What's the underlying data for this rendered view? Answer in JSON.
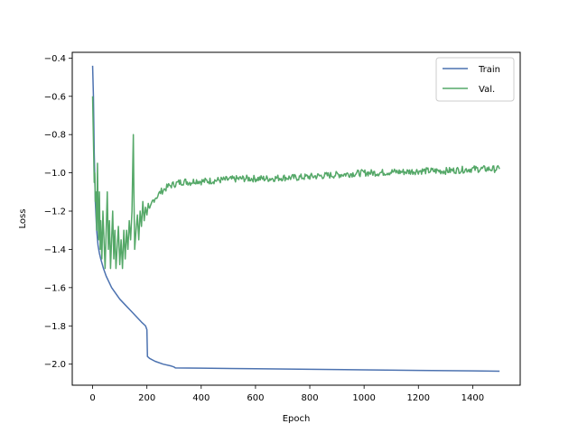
{
  "chart_data": {
    "type": "line",
    "title": "",
    "xlabel": "Epoch",
    "ylabel": "Loss",
    "xlim": [
      -75,
      1575
    ],
    "ylim": [
      -2.11,
      -0.37
    ],
    "xticks": [
      0,
      200,
      400,
      600,
      800,
      1000,
      1200,
      1400
    ],
    "yticks": [
      -2.0,
      -1.8,
      -1.6,
      -1.4,
      -1.2,
      -1.0,
      -0.8,
      -0.6,
      -0.4
    ],
    "legend": "top-right",
    "grid": false,
    "series": [
      {
        "name": "Train",
        "color": "#4c72b0",
        "points": [
          [
            0,
            -0.44
          ],
          [
            3,
            -0.6
          ],
          [
            6,
            -0.9
          ],
          [
            10,
            -1.15
          ],
          [
            15,
            -1.3
          ],
          [
            20,
            -1.38
          ],
          [
            25,
            -1.42
          ],
          [
            30,
            -1.45
          ],
          [
            40,
            -1.5
          ],
          [
            50,
            -1.54
          ],
          [
            60,
            -1.57
          ],
          [
            70,
            -1.6
          ],
          [
            80,
            -1.62
          ],
          [
            100,
            -1.66
          ],
          [
            120,
            -1.69
          ],
          [
            140,
            -1.72
          ],
          [
            160,
            -1.75
          ],
          [
            180,
            -1.78
          ],
          [
            195,
            -1.8
          ],
          [
            200,
            -1.82
          ],
          [
            202,
            -1.96
          ],
          [
            210,
            -1.97
          ],
          [
            230,
            -1.985
          ],
          [
            260,
            -2.0
          ],
          [
            290,
            -2.01
          ],
          [
            300,
            -2.015
          ],
          [
            305,
            -2.02
          ],
          [
            400,
            -2.021
          ],
          [
            600,
            -2.024
          ],
          [
            800,
            -2.027
          ],
          [
            1000,
            -2.03
          ],
          [
            1200,
            -2.033
          ],
          [
            1400,
            -2.035
          ],
          [
            1499,
            -2.037
          ]
        ]
      },
      {
        "name": "Val.",
        "color": "#55a868",
        "points": [
          [
            0,
            -0.6
          ],
          [
            2,
            -0.75
          ],
          [
            4,
            -0.9
          ],
          [
            6,
            -1.05
          ],
          [
            8,
            -1.0
          ],
          [
            10,
            -1.15
          ],
          [
            12,
            -1.1
          ],
          [
            15,
            -1.3
          ],
          [
            18,
            -0.95
          ],
          [
            20,
            -1.2
          ],
          [
            22,
            -1.35
          ],
          [
            25,
            -1.1
          ],
          [
            28,
            -1.4
          ],
          [
            30,
            -1.25
          ],
          [
            34,
            -1.45
          ],
          [
            38,
            -1.2
          ],
          [
            42,
            -1.35
          ],
          [
            46,
            -1.5
          ],
          [
            50,
            -1.3
          ],
          [
            54,
            -1.1
          ],
          [
            58,
            -1.4
          ],
          [
            62,
            -1.25
          ],
          [
            66,
            -1.5
          ],
          [
            70,
            -1.35
          ],
          [
            74,
            -1.2
          ],
          [
            78,
            -1.45
          ],
          [
            82,
            -1.3
          ],
          [
            86,
            -1.5
          ],
          [
            90,
            -1.4
          ],
          [
            95,
            -1.28
          ],
          [
            100,
            -1.48
          ],
          [
            105,
            -1.35
          ],
          [
            110,
            -1.5
          ],
          [
            115,
            -1.3
          ],
          [
            120,
            -1.45
          ],
          [
            125,
            -1.3
          ],
          [
            130,
            -1.4
          ],
          [
            135,
            -1.25
          ],
          [
            140,
            -1.35
          ],
          [
            145,
            -1.2
          ],
          [
            150,
            -0.8
          ],
          [
            152,
            -1.1
          ],
          [
            155,
            -1.4
          ],
          [
            160,
            -1.3
          ],
          [
            165,
            -1.22
          ],
          [
            170,
            -1.35
          ],
          [
            175,
            -1.2
          ],
          [
            180,
            -1.28
          ],
          [
            185,
            -1.15
          ],
          [
            190,
            -1.25
          ],
          [
            195,
            -1.18
          ],
          [
            200,
            -1.22
          ],
          [
            205,
            -1.16
          ],
          [
            210,
            -1.2
          ],
          [
            220,
            -1.15
          ],
          [
            230,
            -1.13
          ],
          [
            240,
            -1.12
          ],
          [
            250,
            -1.1
          ],
          [
            260,
            -1.09
          ],
          [
            270,
            -1.08
          ],
          [
            280,
            -1.07
          ],
          [
            290,
            -1.065
          ],
          [
            300,
            -1.06
          ],
          [
            320,
            -1.05
          ],
          [
            340,
            -1.045
          ],
          [
            360,
            -1.05
          ],
          [
            380,
            -1.04
          ],
          [
            400,
            -1.045
          ],
          [
            450,
            -1.04
          ],
          [
            500,
            -1.035
          ],
          [
            550,
            -1.03
          ],
          [
            600,
            -1.03
          ],
          [
            650,
            -1.03
          ],
          [
            700,
            -1.025
          ],
          [
            750,
            -1.025
          ],
          [
            800,
            -1.02
          ],
          [
            850,
            -1.015
          ],
          [
            900,
            -1.01
          ],
          [
            950,
            -1.005
          ],
          [
            1000,
            -1.0
          ],
          [
            1050,
            -1.0
          ],
          [
            1100,
            -0.995
          ],
          [
            1150,
            -0.995
          ],
          [
            1200,
            -0.99
          ],
          [
            1250,
            -0.99
          ],
          [
            1300,
            -0.99
          ],
          [
            1350,
            -0.985
          ],
          [
            1400,
            -0.98
          ],
          [
            1450,
            -0.98
          ],
          [
            1499,
            -0.98
          ]
        ]
      }
    ]
  }
}
